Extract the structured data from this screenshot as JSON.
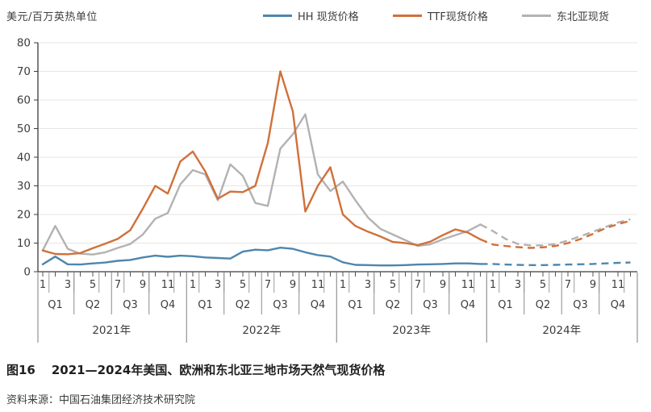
{
  "unit_label": "美元/百万英热单位",
  "caption": {
    "tag": "图16",
    "title": "2021—2024年美国、欧洲和东北亚三地市场天然气现货价格"
  },
  "source": "资料来源：中国石油集团经济技术研究院",
  "chart_data": {
    "type": "line",
    "title": "",
    "ylabel": "美元/百万英热单位",
    "ylim": [
      0,
      80
    ],
    "y_ticks": [
      0,
      10,
      20,
      30,
      40,
      50,
      60,
      70,
      80
    ],
    "grid": "horizontal-light",
    "legend_position": "top",
    "x_structure": {
      "years": [
        "2021年",
        "2022年",
        "2023年",
        "2024年"
      ],
      "quarters": [
        "Q1",
        "Q2",
        "Q3",
        "Q4"
      ],
      "month_labels": [
        "1",
        "3",
        "5",
        "7",
        "9",
        "11"
      ],
      "months_per_year": 12
    },
    "x_months": [
      "2021-01",
      "2021-02",
      "2021-03",
      "2021-04",
      "2021-05",
      "2021-06",
      "2021-07",
      "2021-08",
      "2021-09",
      "2021-10",
      "2021-11",
      "2021-12",
      "2022-01",
      "2022-02",
      "2022-03",
      "2022-04",
      "2022-05",
      "2022-06",
      "2022-07",
      "2022-08",
      "2022-09",
      "2022-10",
      "2022-11",
      "2022-12",
      "2023-01",
      "2023-02",
      "2023-03",
      "2023-04",
      "2023-05",
      "2023-06",
      "2023-07",
      "2023-08",
      "2023-09",
      "2023-10",
      "2023-11",
      "2023-12",
      "2024-01",
      "2024-02",
      "2024-03",
      "2024-04",
      "2024-05",
      "2024-06",
      "2024-07",
      "2024-08",
      "2024-09",
      "2024-10",
      "2024-11",
      "2024-12"
    ],
    "forecast_start_index": 35,
    "forecast_style": "dashed",
    "series": [
      {
        "name": "HH 现货价格",
        "color": "#4e86ad",
        "values": [
          2.6,
          5.3,
          2.6,
          2.5,
          2.9,
          3.2,
          3.8,
          4.1,
          5.0,
          5.6,
          5.2,
          5.6,
          5.4,
          5.0,
          4.8,
          4.6,
          7.0,
          7.7,
          7.5,
          8.4,
          8.0,
          6.8,
          5.8,
          5.3,
          3.3,
          2.4,
          2.3,
          2.2,
          2.2,
          2.3,
          2.5,
          2.6,
          2.7,
          2.9,
          2.9,
          2.7,
          2.7,
          2.5,
          2.4,
          2.3,
          2.3,
          2.4,
          2.5,
          2.6,
          2.7,
          2.9,
          3.1,
          3.2
        ]
      },
      {
        "name": "TTF现货价格",
        "color": "#d0703b",
        "values": [
          7.4,
          6.2,
          6.1,
          6.5,
          8.2,
          9.8,
          11.5,
          14.5,
          22,
          30,
          27.3,
          38.5,
          42,
          35,
          25.5,
          28,
          27.8,
          30,
          45,
          70,
          56,
          21,
          30,
          36.5,
          20,
          16,
          14,
          12.3,
          10.4,
          10,
          9.3,
          10.5,
          12.8,
          14.8,
          13.7,
          11.3,
          9.5,
          9.0,
          8.6,
          8.3,
          8.5,
          9.0,
          10.0,
          11.4,
          13.2,
          15.2,
          16.6,
          17.8
        ]
      },
      {
        "name": "东北亚现货",
        "color": "#b2b2b2",
        "values": [
          7.5,
          16,
          8,
          6.3,
          6.0,
          6.8,
          8.3,
          9.7,
          13,
          18.5,
          20.5,
          30.5,
          35.5,
          34,
          25,
          37.5,
          33.5,
          24,
          23,
          43,
          48,
          55,
          34,
          28.2,
          31.5,
          25,
          19,
          15,
          13,
          11,
          9.0,
          9.6,
          11.3,
          12.8,
          14.2,
          16.5,
          14.2,
          11.5,
          9.7,
          9.2,
          9.2,
          9.6,
          10.9,
          12.4,
          14.0,
          15.6,
          17.2,
          18.3
        ]
      }
    ]
  }
}
